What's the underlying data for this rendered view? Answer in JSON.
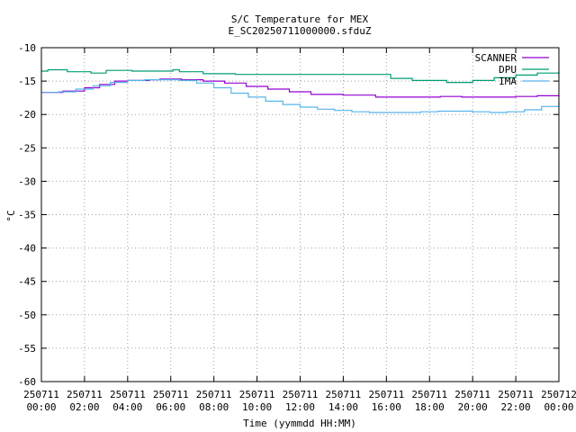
{
  "chart_data": {
    "type": "line",
    "title": "S/C Temperature for MEX",
    "subtitle": "E_SC20250711000000.sfduZ",
    "xlabel": "Time (yymmdd HH:MM)",
    "ylabel": "°C",
    "xlim": [
      0,
      24
    ],
    "ylim": [
      -60,
      -10
    ],
    "yticks": [
      "-10",
      "-15",
      "-20",
      "-25",
      "-30",
      "-35",
      "-40",
      "-45",
      "-50",
      "-55",
      "-60"
    ],
    "xticks": [
      {
        "date": "250711",
        "time": "00:00"
      },
      {
        "date": "250711",
        "time": "02:00"
      },
      {
        "date": "250711",
        "time": "04:00"
      },
      {
        "date": "250711",
        "time": "06:00"
      },
      {
        "date": "250711",
        "time": "08:00"
      },
      {
        "date": "250711",
        "time": "10:00"
      },
      {
        "date": "250711",
        "time": "12:00"
      },
      {
        "date": "250711",
        "time": "14:00"
      },
      {
        "date": "250711",
        "time": "16:00"
      },
      {
        "date": "250711",
        "time": "18:00"
      },
      {
        "date": "250711",
        "time": "20:00"
      },
      {
        "date": "250711",
        "time": "22:00"
      },
      {
        "date": "250712",
        "time": "00:00"
      }
    ],
    "grid": true,
    "legend_position": "top-right",
    "series": [
      {
        "name": "SCANNER",
        "color": "#9400d3",
        "x": [
          0,
          1,
          2,
          2.7,
          3.4,
          4,
          5,
          5.5,
          6.5,
          7.5,
          8.5,
          9.5,
          10.5,
          11.5,
          12.5,
          14,
          15.5,
          17,
          18.5,
          19.5,
          20.5,
          22,
          23,
          24
        ],
        "y": [
          -16.7,
          -16.5,
          -16,
          -15.5,
          -15,
          -14.9,
          -14.8,
          -14.7,
          -14.8,
          -15,
          -15.3,
          -15.8,
          -16.2,
          -16.6,
          -17,
          -17.1,
          -17.4,
          -17.4,
          -17.3,
          -17.4,
          -17.4,
          -17.3,
          -17.2,
          -17.1
        ]
      },
      {
        "name": "DPU",
        "color": "#009e73",
        "x": [
          0,
          0.3,
          1.2,
          2.3,
          3,
          4.2,
          5.2,
          6.1,
          6.4,
          7.5,
          9,
          10.5,
          12,
          14,
          16,
          16.2,
          17.2,
          18.8,
          20,
          21,
          22,
          23,
          24
        ],
        "y": [
          -13.5,
          -13.3,
          -13.6,
          -13.8,
          -13.4,
          -13.5,
          -13.5,
          -13.3,
          -13.6,
          -13.9,
          -14,
          -14,
          -14,
          -14,
          -14,
          -14.6,
          -14.9,
          -15.2,
          -14.9,
          -14.5,
          -14.1,
          -13.8,
          -13.6
        ]
      },
      {
        "name": "IMA",
        "color": "#56b4e9",
        "x": [
          0,
          0.8,
          1.6,
          2.4,
          3.2,
          4,
          4.8,
          5.6,
          6.4,
          7.2,
          8,
          8.8,
          9.6,
          10.4,
          11.2,
          12,
          12.8,
          13.6,
          14.4,
          15.2,
          16,
          16.8,
          17.6,
          18.4,
          19.2,
          20,
          20.8,
          21.6,
          22.4,
          23.2,
          24
        ],
        "y": [
          -16.7,
          -16.6,
          -16.2,
          -15.7,
          -15.2,
          -14.9,
          -14.8,
          -14.8,
          -14.9,
          -15.3,
          -16,
          -16.8,
          -17.4,
          -18,
          -18.5,
          -18.9,
          -19.2,
          -19.4,
          -19.6,
          -19.7,
          -19.7,
          -19.7,
          -19.6,
          -19.5,
          -19.5,
          -19.6,
          -19.7,
          -19.6,
          -19.3,
          -18.8,
          -18.2
        ]
      }
    ]
  }
}
